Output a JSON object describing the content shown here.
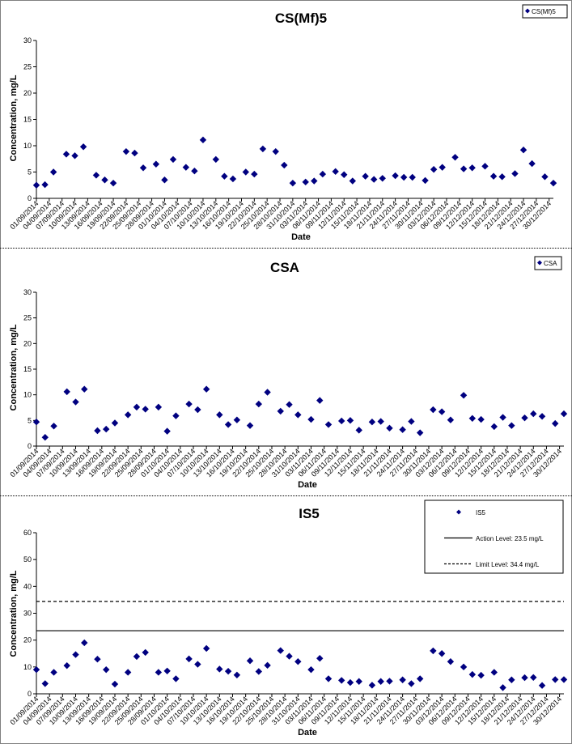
{
  "chart_data": [
    {
      "type": "scatter",
      "title": "CS(Mf)5",
      "xlabel": "Date",
      "ylabel": "Concentration, mg/L",
      "ylim": [
        0,
        30
      ],
      "yticks": [
        0,
        5,
        10,
        15,
        20,
        25,
        30
      ],
      "legend_position": "top-right",
      "color": "#000080",
      "series": [
        {
          "name": "CS(Mf)5",
          "x": [
            "01/09/2014",
            "03/09/2014",
            "05/09/2014",
            "08/09/2014",
            "10/09/2014",
            "12/09/2014",
            "15/09/2014",
            "17/09/2014",
            "19/09/2014",
            "22/09/2014",
            "24/09/2014",
            "26/09/2014",
            "29/09/2014",
            "01/10/2014",
            "03/10/2014",
            "06/10/2014",
            "08/10/2014",
            "10/10/2014",
            "13/10/2014",
            "15/10/2014",
            "17/10/2014",
            "20/10/2014",
            "22/10/2014",
            "24/10/2014",
            "27/10/2014",
            "29/10/2014",
            "31/10/2014",
            "03/11/2014",
            "05/11/2014",
            "07/11/2014",
            "10/11/2014",
            "12/11/2014",
            "14/11/2014",
            "17/11/2014",
            "19/11/2014",
            "21/11/2014",
            "24/11/2014",
            "26/11/2014",
            "28/11/2014",
            "01/12/2014",
            "03/12/2014",
            "05/12/2014",
            "08/12/2014",
            "10/12/2014",
            "12/12/2014",
            "15/12/2014",
            "17/12/2014",
            "19/12/2014",
            "22/12/2014",
            "24/12/2014",
            "26/12/2014",
            "29/12/2014",
            "31/12/2014"
          ],
          "y": [
            2.5,
            2.6,
            5.0,
            8.4,
            8.1,
            9.8,
            4.4,
            3.5,
            2.9,
            8.9,
            8.6,
            5.8,
            6.5,
            3.5,
            7.4,
            5.9,
            5.2,
            11.1,
            7.4,
            4.2,
            3.7,
            5.0,
            4.6,
            9.4,
            8.9,
            6.3,
            2.9,
            3.1,
            3.3,
            4.6,
            5.1,
            4.5,
            3.3,
            4.2,
            3.6,
            3.8,
            4.3,
            4.0,
            4.0,
            3.4,
            5.5,
            5.9,
            7.8,
            5.6,
            5.8,
            6.1,
            4.2,
            4.1,
            4.7,
            9.2,
            6.6,
            4.1,
            2.9
          ]
        }
      ],
      "tick_labels": [
        "01/09/2014",
        "04/09/2014",
        "07/09/2014",
        "10/09/2014",
        "13/09/2014",
        "16/09/2014",
        "19/09/2014",
        "22/09/2014",
        "25/09/2014",
        "28/09/2014",
        "01/10/2014",
        "04/10/2014",
        "07/10/2014",
        "10/10/2014",
        "13/10/2014",
        "16/10/2014",
        "19/10/2014",
        "22/10/2014",
        "25/10/2014",
        "28/10/2014",
        "31/10/2014",
        "03/11/2014",
        "06/11/2014",
        "09/11/2014",
        "12/11/2014",
        "15/11/2014",
        "18/11/2014",
        "21/11/2014",
        "24/11/2014",
        "27/11/2014",
        "30/11/2014",
        "03/12/2014",
        "06/12/2014",
        "09/12/2014",
        "12/12/2014",
        "15/12/2014",
        "18/12/2014",
        "21/12/2014",
        "24/12/2014",
        "27/12/2014",
        "30/12/2014"
      ]
    },
    {
      "type": "scatter",
      "title": "CSA",
      "xlabel": "Date",
      "ylabel": "Concentration, mg/L",
      "ylim": [
        0,
        30
      ],
      "yticks": [
        0,
        5,
        10,
        15,
        20,
        25,
        30
      ],
      "legend_position": "top-right",
      "color": "#000080",
      "series": [
        {
          "name": "CSA",
          "x": [
            "01/09/2014",
            "03/09/2014",
            "05/09/2014",
            "08/09/2014",
            "10/09/2014",
            "12/09/2014",
            "15/09/2014",
            "17/09/2014",
            "19/09/2014",
            "22/09/2014",
            "24/09/2014",
            "26/09/2014",
            "29/09/2014",
            "01/10/2014",
            "03/10/2014",
            "06/10/2014",
            "08/10/2014",
            "10/10/2014",
            "13/10/2014",
            "15/10/2014",
            "17/10/2014",
            "20/10/2014",
            "22/10/2014",
            "24/10/2014",
            "27/10/2014",
            "29/10/2014",
            "31/10/2014",
            "03/11/2014",
            "05/11/2014",
            "07/11/2014",
            "10/11/2014",
            "12/11/2014",
            "14/11/2014",
            "17/11/2014",
            "19/11/2014",
            "21/11/2014",
            "24/11/2014",
            "26/11/2014",
            "28/11/2014",
            "01/12/2014",
            "03/12/2014",
            "05/12/2014",
            "08/12/2014",
            "10/12/2014",
            "12/12/2014",
            "15/12/2014",
            "17/12/2014",
            "19/12/2014",
            "22/12/2014",
            "24/12/2014",
            "26/12/2014",
            "29/12/2014",
            "31/12/2014"
          ],
          "y": [
            4.7,
            1.7,
            3.9,
            10.6,
            8.6,
            11.1,
            3.0,
            3.3,
            4.5,
            6.1,
            7.6,
            7.2,
            7.6,
            2.9,
            5.9,
            8.2,
            7.1,
            11.1,
            6.1,
            4.2,
            5.1,
            4.0,
            8.2,
            10.5,
            6.8,
            8.1,
            6.1,
            5.2,
            8.9,
            4.2,
            4.9,
            5.0,
            3.1,
            4.7,
            4.8,
            3.5,
            3.2,
            4.8,
            2.6,
            7.1,
            6.7,
            5.1,
            9.9,
            5.4,
            5.2,
            3.8,
            5.6,
            4.0,
            5.5,
            6.3,
            5.8,
            4.4,
            6.3
          ]
        }
      ],
      "tick_labels": [
        "01/09/2014",
        "04/09/2014",
        "07/09/2014",
        "10/09/2014",
        "13/09/2014",
        "16/09/2014",
        "19/09/2014",
        "22/09/2014",
        "25/09/2014",
        "28/09/2014",
        "01/10/2014",
        "04/10/2014",
        "07/10/2014",
        "10/10/2014",
        "13/10/2014",
        "16/10/2014",
        "19/10/2014",
        "22/10/2014",
        "25/10/2014",
        "28/10/2014",
        "31/10/2014",
        "03/11/2014",
        "06/11/2014",
        "09/11/2014",
        "12/11/2014",
        "15/11/2014",
        "18/11/2014",
        "21/11/2014",
        "24/11/2014",
        "27/11/2014",
        "30/11/2014",
        "03/12/2014",
        "06/12/2014",
        "09/12/2014",
        "12/12/2014",
        "15/12/2014",
        "18/12/2014",
        "21/12/2014",
        "24/12/2014",
        "27/12/2014",
        "30/12/2014"
      ]
    },
    {
      "type": "scatter",
      "title": "IS5",
      "xlabel": "Date",
      "ylabel": "Concentration, mg/L",
      "ylim": [
        0,
        60
      ],
      "yticks": [
        0,
        10,
        20,
        30,
        40,
        50,
        60
      ],
      "legend_position": "top-right",
      "color": "#000080",
      "series": [
        {
          "name": "IS5",
          "x": [
            "01/09/2014",
            "03/09/2014",
            "05/09/2014",
            "08/09/2014",
            "10/09/2014",
            "12/09/2014",
            "15/09/2014",
            "17/09/2014",
            "19/09/2014",
            "22/09/2014",
            "24/09/2014",
            "26/09/2014",
            "29/09/2014",
            "01/10/2014",
            "03/10/2014",
            "06/10/2014",
            "08/10/2014",
            "10/10/2014",
            "13/10/2014",
            "15/10/2014",
            "17/10/2014",
            "20/10/2014",
            "22/10/2014",
            "24/10/2014",
            "27/10/2014",
            "29/10/2014",
            "31/10/2014",
            "03/11/2014",
            "05/11/2014",
            "07/11/2014",
            "10/11/2014",
            "12/11/2014",
            "14/11/2014",
            "17/11/2014",
            "19/11/2014",
            "21/11/2014",
            "24/11/2014",
            "26/11/2014",
            "28/11/2014",
            "01/12/2014",
            "03/12/2014",
            "05/12/2014",
            "08/12/2014",
            "10/12/2014",
            "12/12/2014",
            "15/12/2014",
            "17/12/2014",
            "19/12/2014",
            "22/12/2014",
            "24/12/2014",
            "26/12/2014",
            "29/12/2014",
            "31/12/2014"
          ],
          "y": [
            9.0,
            3.8,
            8.0,
            10.5,
            14.6,
            19.0,
            12.9,
            9.0,
            3.6,
            8.0,
            13.9,
            15.4,
            8.0,
            8.5,
            5.6,
            13.0,
            11.0,
            16.9,
            9.2,
            8.4,
            7.0,
            12.3,
            8.3,
            10.6,
            16.1,
            14.0,
            12.0,
            9.0,
            13.2,
            5.6,
            5.0,
            4.2,
            4.6,
            3.2,
            4.6,
            4.7,
            5.2,
            3.8,
            5.6,
            16.0,
            15.0,
            12.0,
            10.0,
            7.2,
            6.9,
            8.0,
            2.3,
            5.2,
            6.0,
            6.1,
            3.1,
            5.3,
            5.3
          ]
        },
        {
          "name": "Action Level: 23.5 mg/L",
          "type": "line",
          "y": 23.5
        },
        {
          "name": "Limit Level: 34.4 mg/L",
          "type": "line",
          "y": 34.4,
          "style": "dashed"
        }
      ],
      "tick_labels": [
        "01/09/2014",
        "04/09/2014",
        "07/09/2014",
        "10/09/2014",
        "13/09/2014",
        "16/09/2014",
        "19/09/2014",
        "22/09/2014",
        "25/09/2014",
        "28/09/2014",
        "01/10/2014",
        "04/10/2014",
        "07/10/2014",
        "10/10/2014",
        "13/10/2014",
        "16/10/2014",
        "19/10/2014",
        "22/10/2014",
        "25/10/2014",
        "28/10/2014",
        "31/10/2014",
        "03/11/2014",
        "06/11/2014",
        "09/11/2014",
        "12/11/2014",
        "15/11/2014",
        "18/11/2014",
        "21/11/2014",
        "24/11/2014",
        "27/11/2014",
        "30/11/2014",
        "03/12/2014",
        "06/12/2014",
        "09/12/2014",
        "12/12/2014",
        "15/12/2014",
        "18/12/2014",
        "21/12/2014",
        "24/12/2014",
        "27/12/2014",
        "30/12/2014"
      ]
    }
  ]
}
